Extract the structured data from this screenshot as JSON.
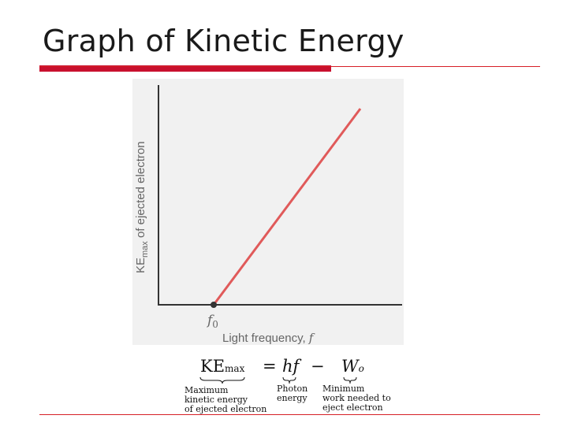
{
  "title": "Graph of Kinetic Energy",
  "colors": {
    "accent": "#c8102e",
    "line": "#e05a5a",
    "axis": "#333333",
    "panel": "#f1f1f1"
  },
  "chart_data": {
    "type": "line",
    "title": "",
    "xlabel": "Light frequency, f",
    "ylabel": "KE_max of ejected electron",
    "ylabel_main": "KE",
    "ylabel_sub": "max",
    "ylabel_rest": " of ejected electron",
    "xlabel_main": "Light frequency, ",
    "xlabel_var": "f",
    "x_ticks": [
      {
        "label": "f",
        "sub": "0",
        "x": 0
      }
    ],
    "grid": false,
    "series": [
      {
        "x": [
          0,
          1
        ],
        "y": [
          0,
          1
        ],
        "color": "#e05a5a"
      }
    ],
    "threshold_marker": {
      "x": 0,
      "y": 0
    }
  },
  "equation": {
    "ke": "KE",
    "ke_sub": "max",
    "equals": "=",
    "hf": "hf",
    "minus": "−",
    "w": "W",
    "w_sub": "o"
  },
  "captions": {
    "ke": [
      "Maximum",
      "kinetic energy",
      "of ejected electron"
    ],
    "hf": [
      "Photon",
      "energy"
    ],
    "w": [
      "Minimum",
      "work needed to",
      "eject electron"
    ]
  }
}
